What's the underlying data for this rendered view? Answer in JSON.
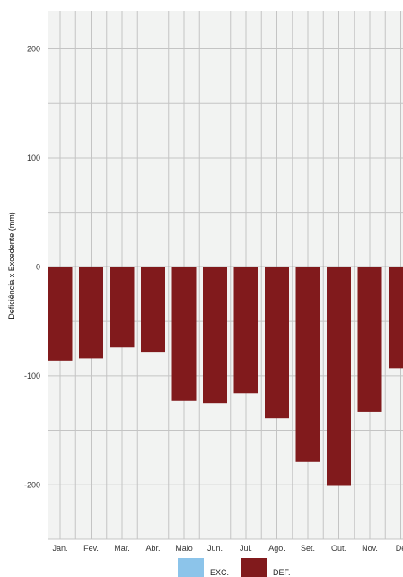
{
  "chart_data": {
    "type": "bar",
    "ylabel": "Deficiência x Excedente (mm)",
    "categories": [
      "Jan.",
      "Fev.",
      "Mar.",
      "Abr.",
      "Maio",
      "Jun.",
      "Jul.",
      "Ago.",
      "Set.",
      "Out.",
      "Nov.",
      "De"
    ],
    "series": [
      {
        "name": "EXC.",
        "color": "#8cc4ea",
        "values": [
          0,
          0,
          0,
          0,
          0,
          0,
          0,
          0,
          0,
          0,
          0,
          0
        ]
      },
      {
        "name": "DEF.",
        "color": "#811a1c",
        "values": [
          -86,
          -84,
          -74,
          -78,
          -123,
          -125,
          -116,
          -139,
          -179,
          -201,
          -133,
          -93
        ]
      }
    ],
    "ylim": [
      -250,
      235
    ],
    "yticks": [
      200,
      100,
      0,
      -100,
      -200
    ],
    "grid": true,
    "legend_position": "bottom-center",
    "colors": {
      "plot_background": "#f2f3f2",
      "grid": "#c4c4c4",
      "zero_line": "#555555"
    }
  }
}
